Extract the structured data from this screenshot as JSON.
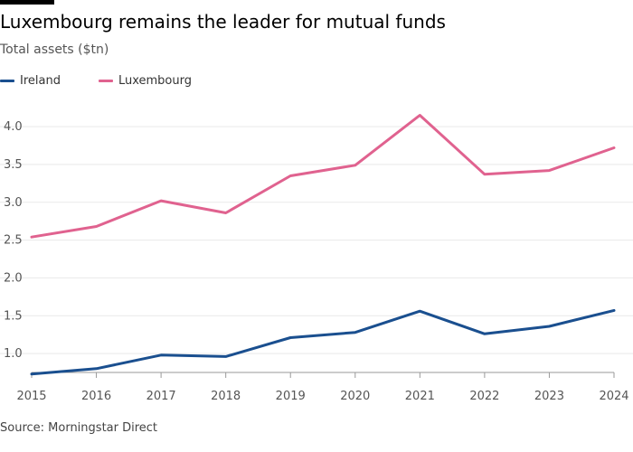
{
  "chart_data": {
    "type": "line",
    "title": "Luxembourg remains the leader for mutual funds",
    "subtitle": "Total assets ($tn)",
    "source": "Source: Morningstar Direct",
    "xlabel": "",
    "ylabel": "",
    "categories": [
      "2015",
      "2016",
      "2017",
      "2018",
      "2019",
      "2020",
      "2021",
      "2022",
      "2023",
      "2024"
    ],
    "yticks": [
      "1.0",
      "1.5",
      "2.0",
      "2.5",
      "3.0",
      "3.5",
      "4.0"
    ],
    "ylim": [
      0.75,
      4.3
    ],
    "grid": true,
    "legend_position": "top-left",
    "series": [
      {
        "name": "Ireland",
        "color": "#1a4f8f",
        "values": [
          0.73,
          0.8,
          0.98,
          0.96,
          1.21,
          1.28,
          1.56,
          1.26,
          1.36,
          1.57
        ]
      },
      {
        "name": "Luxembourg",
        "color": "#e0628f",
        "values": [
          2.54,
          2.68,
          3.02,
          2.86,
          3.35,
          3.49,
          4.15,
          3.37,
          3.42,
          3.72
        ]
      }
    ]
  }
}
